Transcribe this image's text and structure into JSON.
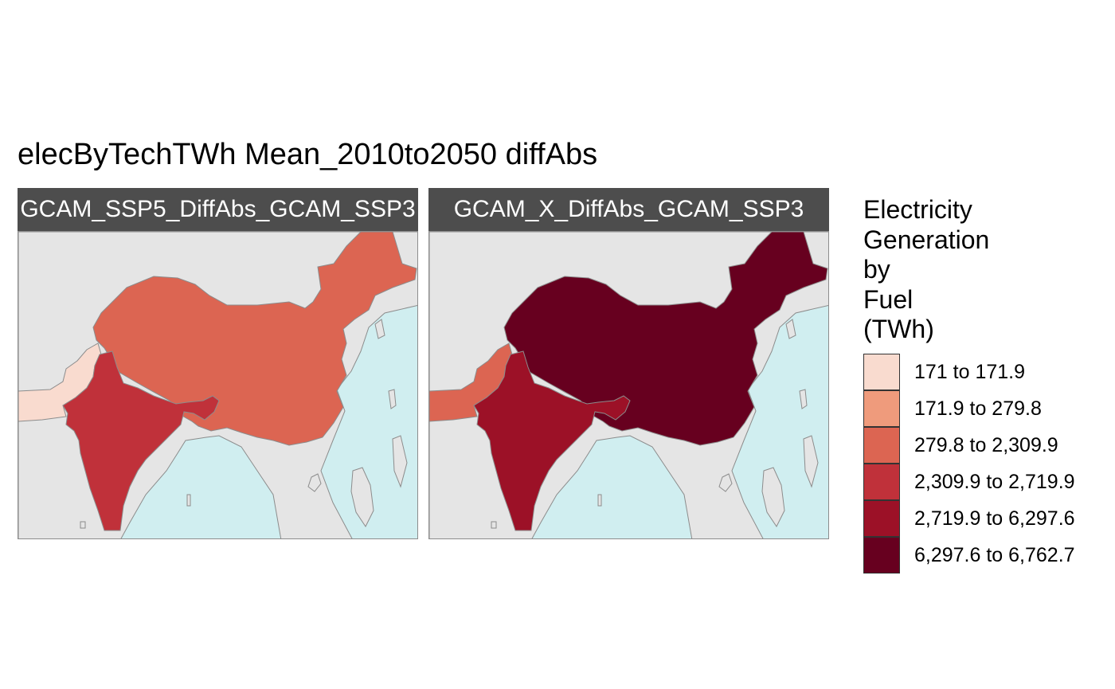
{
  "title": "elecByTechTWh Mean_2010to2050 diffAbs",
  "panels": [
    {
      "label": "GCAM_SSP5_DiffAbs_GCAM_SSP3",
      "countries": {
        "china": "279.8 to 2,309.9",
        "india": "2,309.9 to 2,719.9",
        "pakistan": "171 to 171.9"
      }
    },
    {
      "label": "GCAM_X_DiffAbs_GCAM_SSP3",
      "countries": {
        "china": "6,297.6 to 6,762.7",
        "india": "2,719.9 to 6,297.6",
        "pakistan": "279.8 to 2,309.9"
      }
    }
  ],
  "legend": {
    "title": "Electricity\nGeneration\nby\nFuel\n(TWh)",
    "items": [
      {
        "label": "171 to 171.9",
        "color": "#f9dbcf"
      },
      {
        "label": "171.9 to 279.8",
        "color": "#ef9b7c"
      },
      {
        "label": "279.8 to 2,309.9",
        "color": "#dc6552"
      },
      {
        "label": "2,309.9 to 2,719.9",
        "color": "#c0313a"
      },
      {
        "label": "2,719.9 to 6,297.6",
        "color": "#9c1127"
      },
      {
        "label": "6,297.6 to 6,762.7",
        "color": "#67001f"
      }
    ]
  },
  "colors": {
    "ocean": "#d0eef0",
    "land_nodata": "#e5e5e5",
    "border": "#8c8c8c",
    "strip": "#4d4d4d"
  }
}
